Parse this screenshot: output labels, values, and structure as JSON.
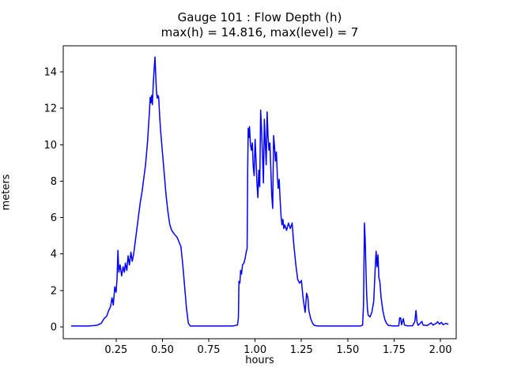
{
  "chart_data": {
    "type": "line",
    "title": "Gauge 101 : Flow Depth (h)",
    "subtitle": "max(h) =  14.816,    max(level) = 7",
    "xlabel": "hours",
    "ylabel": "meters",
    "xlim": [
      -0.035,
      2.085
    ],
    "ylim": [
      -0.65,
      15.43
    ],
    "x_ticks": [
      0.25,
      0.5,
      0.75,
      1.0,
      1.25,
      1.5,
      1.75,
      2.0
    ],
    "x_tick_labels": [
      "0.25",
      "0.50",
      "0.75",
      "1.00",
      "1.25",
      "1.50",
      "1.75",
      "2.00"
    ],
    "y_ticks": [
      0,
      2,
      4,
      6,
      8,
      10,
      12,
      14
    ],
    "y_tick_labels": [
      "0",
      "2",
      "4",
      "6",
      "8",
      "10",
      "12",
      "14"
    ],
    "grid": false,
    "legend": null,
    "line_color": "#0000ff",
    "line_width": 1.5,
    "max_h": 14.816,
    "max_level": 7,
    "points": [
      [
        0.01,
        0.05
      ],
      [
        0.05,
        0.05
      ],
      [
        0.1,
        0.05
      ],
      [
        0.13,
        0.07
      ],
      [
        0.15,
        0.1
      ],
      [
        0.17,
        0.2
      ],
      [
        0.185,
        0.45
      ],
      [
        0.2,
        0.6
      ],
      [
        0.21,
        0.9
      ],
      [
        0.22,
        1.1
      ],
      [
        0.228,
        1.6
      ],
      [
        0.235,
        1.2
      ],
      [
        0.243,
        2.2
      ],
      [
        0.25,
        1.9
      ],
      [
        0.255,
        2.6
      ],
      [
        0.26,
        4.2
      ],
      [
        0.265,
        3.0
      ],
      [
        0.272,
        3.4
      ],
      [
        0.28,
        2.8
      ],
      [
        0.288,
        3.3
      ],
      [
        0.295,
        3.0
      ],
      [
        0.3,
        3.5
      ],
      [
        0.308,
        3.1
      ],
      [
        0.315,
        3.9
      ],
      [
        0.322,
        3.4
      ],
      [
        0.33,
        4.1
      ],
      [
        0.337,
        3.6
      ],
      [
        0.345,
        4.0
      ],
      [
        0.35,
        4.4
      ],
      [
        0.36,
        5.2
      ],
      [
        0.37,
        6.0
      ],
      [
        0.38,
        6.8
      ],
      [
        0.39,
        7.4
      ],
      [
        0.4,
        8.2
      ],
      [
        0.408,
        8.8
      ],
      [
        0.415,
        9.6
      ],
      [
        0.42,
        10.2
      ],
      [
        0.425,
        11.0
      ],
      [
        0.43,
        11.8
      ],
      [
        0.434,
        12.6
      ],
      [
        0.438,
        12.3
      ],
      [
        0.442,
        12.7
      ],
      [
        0.446,
        12.2
      ],
      [
        0.45,
        13.2
      ],
      [
        0.455,
        14.1
      ],
      [
        0.46,
        14.82
      ],
      [
        0.464,
        13.8
      ],
      [
        0.468,
        12.9
      ],
      [
        0.472,
        12.55
      ],
      [
        0.476,
        12.7
      ],
      [
        0.48,
        12.6
      ],
      [
        0.485,
        11.6
      ],
      [
        0.49,
        10.8
      ],
      [
        0.495,
        10.2
      ],
      [
        0.5,
        9.6
      ],
      [
        0.51,
        8.4
      ],
      [
        0.52,
        7.2
      ],
      [
        0.53,
        6.3
      ],
      [
        0.54,
        5.6
      ],
      [
        0.55,
        5.3
      ],
      [
        0.56,
        5.15
      ],
      [
        0.58,
        4.9
      ],
      [
        0.6,
        4.4
      ],
      [
        0.61,
        3.4
      ],
      [
        0.62,
        2.2
      ],
      [
        0.63,
        1.0
      ],
      [
        0.64,
        0.2
      ],
      [
        0.65,
        0.05
      ],
      [
        0.7,
        0.05
      ],
      [
        0.8,
        0.05
      ],
      [
        0.88,
        0.05
      ],
      [
        0.905,
        0.1
      ],
      [
        0.91,
        0.5
      ],
      [
        0.913,
        2.5
      ],
      [
        0.918,
        2.4
      ],
      [
        0.922,
        3.1
      ],
      [
        0.927,
        2.9
      ],
      [
        0.932,
        3.4
      ],
      [
        0.94,
        3.5
      ],
      [
        0.947,
        3.8
      ],
      [
        0.952,
        4.1
      ],
      [
        0.957,
        4.3
      ],
      [
        0.96,
        8.5
      ],
      [
        0.963,
        10.9
      ],
      [
        0.967,
        10.4
      ],
      [
        0.97,
        11.0
      ],
      [
        0.975,
        10.0
      ],
      [
        0.98,
        9.7
      ],
      [
        0.985,
        10.1
      ],
      [
        0.99,
        8.8
      ],
      [
        0.995,
        8.3
      ],
      [
        1.0,
        10.3
      ],
      [
        1.005,
        9.2
      ],
      [
        1.01,
        7.9
      ],
      [
        1.015,
        7.1
      ],
      [
        1.02,
        8.6
      ],
      [
        1.025,
        7.7
      ],
      [
        1.03,
        11.9
      ],
      [
        1.035,
        10.8
      ],
      [
        1.04,
        9.4
      ],
      [
        1.045,
        7.9
      ],
      [
        1.05,
        11.4
      ],
      [
        1.055,
        10.1
      ],
      [
        1.06,
        8.9
      ],
      [
        1.065,
        11.8
      ],
      [
        1.07,
        10.4
      ],
      [
        1.075,
        9.7
      ],
      [
        1.08,
        10.1
      ],
      [
        1.085,
        8.6
      ],
      [
        1.09,
        7.2
      ],
      [
        1.095,
        6.5
      ],
      [
        1.1,
        10.5
      ],
      [
        1.105,
        9.9
      ],
      [
        1.11,
        9.1
      ],
      [
        1.115,
        9.6
      ],
      [
        1.12,
        8.3
      ],
      [
        1.125,
        7.6
      ],
      [
        1.13,
        8.1
      ],
      [
        1.135,
        7.0
      ],
      [
        1.14,
        6.1
      ],
      [
        1.145,
        5.6
      ],
      [
        1.15,
        5.9
      ],
      [
        1.155,
        5.4
      ],
      [
        1.16,
        5.6
      ],
      [
        1.17,
        5.3
      ],
      [
        1.18,
        5.7
      ],
      [
        1.19,
        5.4
      ],
      [
        1.2,
        5.7
      ],
      [
        1.205,
        5.0
      ],
      [
        1.21,
        4.4
      ],
      [
        1.22,
        3.4
      ],
      [
        1.23,
        2.6
      ],
      [
        1.24,
        2.4
      ],
      [
        1.25,
        2.55
      ],
      [
        1.255,
        2.0
      ],
      [
        1.26,
        1.5
      ],
      [
        1.27,
        0.8
      ],
      [
        1.278,
        1.85
      ],
      [
        1.285,
        1.6
      ],
      [
        1.29,
        0.9
      ],
      [
        1.3,
        0.45
      ],
      [
        1.31,
        0.2
      ],
      [
        1.32,
        0.08
      ],
      [
        1.34,
        0.05
      ],
      [
        1.4,
        0.05
      ],
      [
        1.5,
        0.05
      ],
      [
        1.57,
        0.05
      ],
      [
        1.58,
        0.1
      ],
      [
        1.585,
        1.2
      ],
      [
        1.59,
        5.7
      ],
      [
        1.594,
        4.8
      ],
      [
        1.598,
        3.2
      ],
      [
        1.602,
        1.8
      ],
      [
        1.606,
        1.0
      ],
      [
        1.61,
        0.65
      ],
      [
        1.62,
        0.55
      ],
      [
        1.63,
        0.8
      ],
      [
        1.64,
        1.4
      ],
      [
        1.648,
        3.2
      ],
      [
        1.653,
        4.15
      ],
      [
        1.658,
        3.3
      ],
      [
        1.663,
        3.95
      ],
      [
        1.668,
        2.7
      ],
      [
        1.673,
        2.5
      ],
      [
        1.68,
        1.6
      ],
      [
        1.69,
        0.85
      ],
      [
        1.7,
        0.4
      ],
      [
        1.71,
        0.18
      ],
      [
        1.72,
        0.08
      ],
      [
        1.75,
        0.05
      ],
      [
        1.775,
        0.06
      ],
      [
        1.78,
        0.5
      ],
      [
        1.786,
        0.48
      ],
      [
        1.79,
        0.12
      ],
      [
        1.8,
        0.45
      ],
      [
        1.806,
        0.1
      ],
      [
        1.82,
        0.06
      ],
      [
        1.85,
        0.06
      ],
      [
        1.862,
        0.3
      ],
      [
        1.868,
        0.9
      ],
      [
        1.874,
        0.25
      ],
      [
        1.88,
        0.08
      ],
      [
        1.9,
        0.3
      ],
      [
        1.906,
        0.1
      ],
      [
        1.93,
        0.08
      ],
      [
        1.95,
        0.22
      ],
      [
        1.96,
        0.1
      ],
      [
        1.975,
        0.18
      ],
      [
        1.985,
        0.28
      ],
      [
        1.995,
        0.15
      ],
      [
        2.005,
        0.25
      ],
      [
        2.015,
        0.12
      ],
      [
        2.03,
        0.2
      ],
      [
        2.04,
        0.15
      ]
    ]
  }
}
